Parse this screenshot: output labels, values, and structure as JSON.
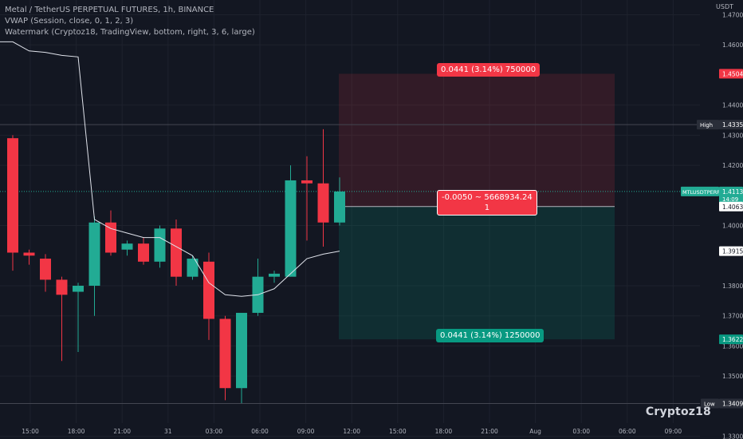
{
  "legend": {
    "line1": "Metal / TetherUS PERPETUAL FUTURES, 1h, BINANCE",
    "line2": "VWAP (Session, close, 0, 1, 2, 3)",
    "line3": "Watermark (Cryptoz18, TradingView, bottom, right, 3, 6, large)"
  },
  "watermark": "Cryptoz18",
  "unit": "USDT",
  "position_tool": {
    "stop_label": "0.0441 (3.14%) 750000",
    "mid_label_1": "-0.0050 ~ 5668934.24",
    "mid_label_2": "1",
    "target_label": "0.0441 (3.14%) 1250000",
    "stop_price": 1.4504,
    "entry_price": 1.4063,
    "target_price": 1.3622
  },
  "price_tags": {
    "high_label": "High",
    "high_value": "1.4335",
    "low_label": "Low",
    "low_value": "1.3409",
    "ticker_label": "MTLUSDTPERP",
    "last_value": "1.4113",
    "countdown": "14:09",
    "entry_value": "1.4063",
    "vwap_value": "1.3915",
    "stop_value": "1.4504",
    "target_value": "1.3622"
  },
  "colors": {
    "up": "#22ab94",
    "down": "#f23645",
    "background": "#131722",
    "vwap": "#e0e3eb",
    "stop_zone": "#f2364533",
    "target_zone": "#08998133"
  },
  "chart_data": {
    "type": "candlestick",
    "title": "Metal / TetherUS PERPETUAL FUTURES, 1h, BINANCE",
    "ylim": [
      1.3291,
      1.4749
    ],
    "y_ticks": [
      "1.4700",
      "1.4600",
      "1.4400",
      "1.4300",
      "1.4200",
      "1.4000",
      "1.3800",
      "1.3700",
      "1.3600",
      "1.3500",
      "1.3300"
    ],
    "x_ticks": [
      "15:00",
      "18:00",
      "21:00",
      "31",
      "03:00",
      "06:00",
      "09:00",
      "12:00",
      "15:00",
      "18:00",
      "21:00",
      "Aug",
      "03:00",
      "06:00",
      "09:00"
    ],
    "candles": [
      {
        "o": 1.429,
        "h": 1.43,
        "l": 1.385,
        "c": 1.391
      },
      {
        "o": 1.391,
        "h": 1.392,
        "l": 1.387,
        "c": 1.39
      },
      {
        "o": 1.389,
        "h": 1.3905,
        "l": 1.378,
        "c": 1.382
      },
      {
        "o": 1.382,
        "h": 1.383,
        "l": 1.355,
        "c": 1.377
      },
      {
        "o": 1.378,
        "h": 1.381,
        "l": 1.358,
        "c": 1.38
      },
      {
        "o": 1.38,
        "h": 1.403,
        "l": 1.37,
        "c": 1.401
      },
      {
        "o": 1.401,
        "h": 1.405,
        "l": 1.39,
        "c": 1.391
      },
      {
        "o": 1.392,
        "h": 1.395,
        "l": 1.39,
        "c": 1.394
      },
      {
        "o": 1.394,
        "h": 1.396,
        "l": 1.387,
        "c": 1.388
      },
      {
        "o": 1.388,
        "h": 1.4,
        "l": 1.386,
        "c": 1.399
      },
      {
        "o": 1.399,
        "h": 1.402,
        "l": 1.38,
        "c": 1.383
      },
      {
        "o": 1.383,
        "h": 1.39,
        "l": 1.382,
        "c": 1.389
      },
      {
        "o": 1.388,
        "h": 1.391,
        "l": 1.362,
        "c": 1.369
      },
      {
        "o": 1.369,
        "h": 1.37,
        "l": 1.342,
        "c": 1.346
      },
      {
        "o": 1.346,
        "h": 1.371,
        "l": 1.341,
        "c": 1.371
      },
      {
        "o": 1.371,
        "h": 1.389,
        "l": 1.37,
        "c": 1.383
      },
      {
        "o": 1.383,
        "h": 1.385,
        "l": 1.381,
        "c": 1.384
      },
      {
        "o": 1.383,
        "h": 1.42,
        "l": 1.383,
        "c": 1.415
      },
      {
        "o": 1.415,
        "h": 1.423,
        "l": 1.395,
        "c": 1.414
      },
      {
        "o": 1.414,
        "h": 1.432,
        "l": 1.393,
        "c": 1.401
      },
      {
        "o": 1.401,
        "h": 1.416,
        "l": 1.4,
        "c": 1.4113
      }
    ],
    "vwap": [
      1.461,
      1.458,
      1.4575,
      1.4565,
      1.456,
      1.402,
      1.399,
      1.3975,
      1.396,
      1.396,
      1.393,
      1.39,
      1.381,
      1.377,
      1.3765,
      1.377,
      1.379,
      1.384,
      1.389,
      1.3905,
      1.3915
    ]
  }
}
